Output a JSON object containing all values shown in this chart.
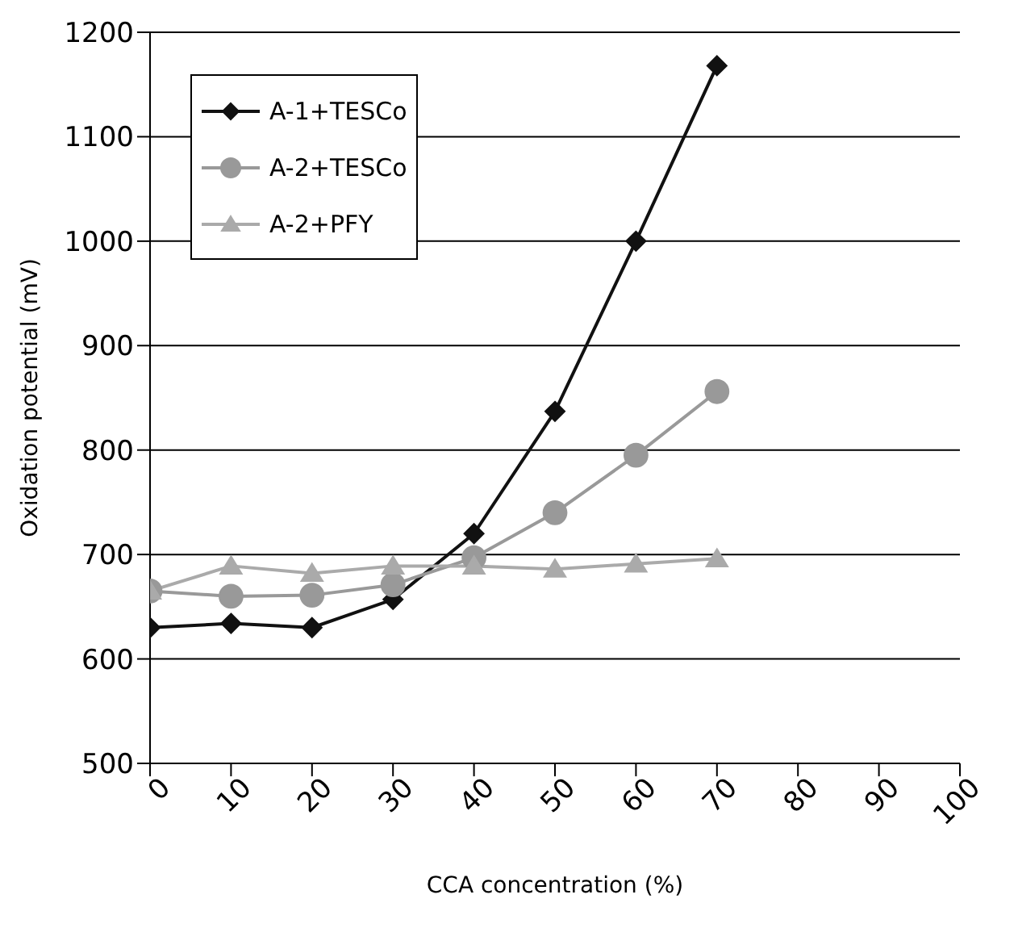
{
  "chart_data": {
    "type": "line",
    "xlabel": "CCA concentration (%)",
    "ylabel": "Oxidation potential (mV)",
    "x": [
      0,
      10,
      20,
      30,
      40,
      50,
      60,
      70
    ],
    "series": [
      {
        "name": "A-1+TESCo",
        "color": "#111111",
        "marker": "diamond",
        "values": [
          630,
          634,
          630,
          657,
          720,
          837,
          1000,
          1168
        ]
      },
      {
        "name": "A-2+TESCo",
        "color": "#999999",
        "marker": "circle",
        "values": [
          665,
          660,
          661,
          671,
          697,
          740,
          795,
          856
        ]
      },
      {
        "name": "A-2+PFY",
        "color": "#aaaaaa",
        "marker": "triangle",
        "values": [
          665,
          689,
          682,
          689,
          689,
          686,
          691,
          696
        ]
      }
    ],
    "xlim": [
      0,
      100
    ],
    "xticks": [
      0,
      10,
      20,
      30,
      40,
      50,
      60,
      70,
      80,
      90,
      100
    ],
    "ylim": [
      500,
      1200
    ],
    "yticks": [
      500,
      600,
      700,
      800,
      900,
      1000,
      1100,
      1200
    ],
    "grid": "y",
    "legend": "top left",
    "line_style": "solid"
  }
}
